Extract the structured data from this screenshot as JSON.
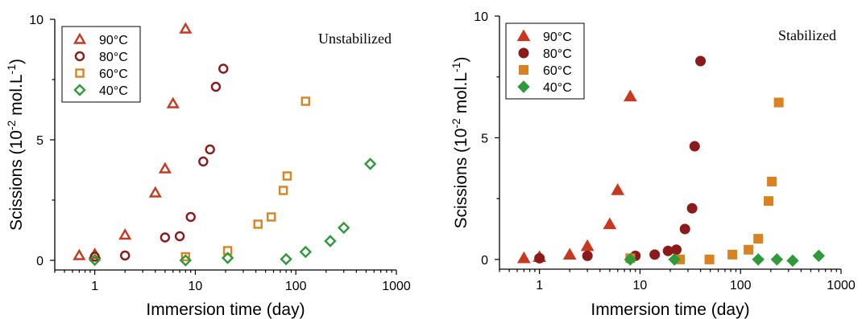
{
  "chart_data": [
    {
      "type": "scatter",
      "title": "Unstabilized",
      "xlabel": "Immersion time (day)",
      "ylabel": "Scissions (10^-2 mol.L^-1)",
      "xscale": "log",
      "xlim": [
        0.4,
        1000
      ],
      "ylim": [
        -0.4,
        10
      ],
      "xticks": [
        1,
        10,
        100,
        1000
      ],
      "xtick_labels": [
        "1",
        "10",
        "100",
        "1000"
      ],
      "yticks": [
        0,
        5,
        10
      ],
      "ytick_labels": [
        "0",
        "5",
        "10"
      ],
      "marker_fill": "open",
      "legend_position": "top-left",
      "series": [
        {
          "name": "90°C",
          "marker": "triangle",
          "color": "#c8381f",
          "x": [
            0.7,
            1,
            2,
            4,
            5,
            6,
            8
          ],
          "y": [
            0.2,
            0.25,
            1.05,
            2.8,
            3.8,
            6.5,
            9.6
          ]
        },
        {
          "name": "80°C",
          "marker": "circle",
          "color": "#8b1a1a",
          "x": [
            1,
            2,
            5,
            7,
            9,
            12,
            14,
            16,
            19
          ],
          "y": [
            0.15,
            0.2,
            0.95,
            1.0,
            1.8,
            4.1,
            4.6,
            7.2,
            7.95
          ]
        },
        {
          "name": "60°C",
          "marker": "square",
          "color": "#d9821f",
          "x": [
            8,
            21,
            42,
            57,
            75,
            82,
            125
          ],
          "y": [
            0.15,
            0.4,
            1.5,
            1.8,
            2.9,
            3.5,
            6.6
          ]
        },
        {
          "name": "40°C",
          "marker": "diamond",
          "color": "#2e9a3a",
          "x": [
            1,
            8,
            21,
            80,
            125,
            220,
            300,
            550
          ],
          "y": [
            0.02,
            0.0,
            0.1,
            0.05,
            0.35,
            0.8,
            1.35,
            4.0
          ]
        }
      ]
    },
    {
      "type": "scatter",
      "title": "Stabilized",
      "xlabel": "Immersion time (day)",
      "ylabel": "Scissions (10^-2 mol.L^-1)",
      "xscale": "log",
      "xlim": [
        0.4,
        1000
      ],
      "ylim": [
        -0.4,
        10
      ],
      "xticks": [
        1,
        10,
        100,
        1000
      ],
      "xtick_labels": [
        "1",
        "10",
        "100",
        "1000"
      ],
      "yticks": [
        0,
        5,
        10
      ],
      "ytick_labels": [
        "0",
        "5",
        "10"
      ],
      "marker_fill": "filled",
      "legend_position": "top-left",
      "series": [
        {
          "name": "90°C",
          "marker": "triangle",
          "color": "#c8381f",
          "x": [
            0.7,
            1,
            2,
            3,
            5,
            6,
            8
          ],
          "y": [
            0.05,
            0.1,
            0.2,
            0.55,
            1.45,
            2.85,
            6.7
          ]
        },
        {
          "name": "80°C",
          "marker": "circle",
          "color": "#8b1a1a",
          "x": [
            1,
            3,
            9,
            14,
            19,
            23,
            28,
            33,
            35,
            40
          ],
          "y": [
            0.05,
            0.15,
            0.15,
            0.2,
            0.35,
            0.4,
            1.25,
            2.1,
            4.65,
            8.15
          ]
        },
        {
          "name": "60°C",
          "marker": "square",
          "color": "#d9821f",
          "x": [
            8,
            25,
            49,
            83,
            120,
            150,
            190,
            205,
            240
          ],
          "y": [
            0.05,
            0.0,
            0.0,
            0.2,
            0.4,
            0.85,
            2.4,
            3.2,
            6.45
          ]
        },
        {
          "name": "40°C",
          "marker": "diamond",
          "color": "#2e9a3a",
          "x": [
            8,
            22,
            150,
            230,
            330,
            600
          ],
          "y": [
            0.0,
            0.0,
            0.0,
            0.0,
            -0.05,
            0.15
          ]
        }
      ]
    }
  ]
}
